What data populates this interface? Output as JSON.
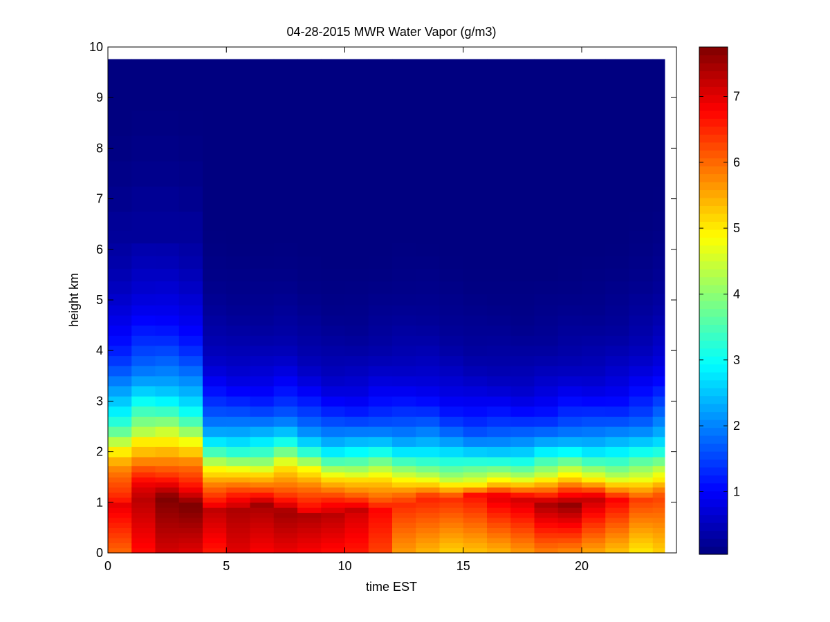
{
  "chart_data": {
    "type": "heatmap",
    "title": "04-28-2015 MWR Water Vapor (g/m3)",
    "xlabel": "time EST",
    "ylabel": "height km",
    "xlim": [
      0,
      24
    ],
    "ylim": [
      0,
      10
    ],
    "x_ticks": [
      "0",
      "5",
      "10",
      "15",
      "20"
    ],
    "y_ticks": [
      "0",
      "1",
      "2",
      "3",
      "4",
      "5",
      "6",
      "7",
      "8",
      "9",
      "10"
    ],
    "colorscale": "jet",
    "colorbar": {
      "min": 0.05,
      "max": 7.75,
      "ticks": [
        "1",
        "2",
        "3",
        "4",
        "5",
        "6",
        "7"
      ]
    },
    "x": [
      0.5,
      1.5,
      2.5,
      3.5,
      4.5,
      5.5,
      6.5,
      7.5,
      8.5,
      9.5,
      10.5,
      11.5,
      12.5,
      13.5,
      14.5,
      15.5,
      16.5,
      17.5,
      18.5,
      19.5,
      20.5,
      21.5,
      22.5,
      23.5
    ],
    "heights_km": [
      0.05,
      0.15,
      0.25,
      0.35,
      0.45,
      0.55,
      0.65,
      0.75,
      0.85,
      0.95,
      1.05,
      1.15,
      1.25,
      1.35,
      1.45,
      1.55,
      1.65,
      1.8,
      2.0,
      2.2,
      2.4,
      2.6,
      2.8,
      3.0,
      3.2,
      3.4,
      3.6,
      3.8,
      4.0,
      4.2,
      4.4,
      4.6,
      4.8,
      5.0,
      5.25,
      5.5,
      5.75,
      6.0,
      6.25,
      6.5,
      7.0,
      7.5,
      8.0,
      8.5,
      9.0,
      9.5,
      9.75
    ],
    "surface_vapor": [
      6.0,
      6.7,
      7.1,
      7.0,
      6.6,
      7.0,
      6.8,
      6.9,
      6.8,
      6.7,
      6.6,
      6.3,
      5.6,
      5.4,
      5.2,
      5.3,
      5.4,
      5.6,
      5.8,
      5.7,
      5.5,
      5.3,
      5.0,
      5.2
    ],
    "peak_vapor": [
      7.0,
      7.3,
      7.7,
      7.8,
      7.3,
      7.4,
      7.4,
      7.5,
      7.4,
      7.3,
      7.1,
      6.8,
      6.5,
      6.5,
      6.5,
      6.7,
      7.0,
      7.1,
      7.5,
      7.7,
      7.2,
      6.8,
      6.4,
      6.3
    ],
    "peak_height_km": [
      1.0,
      1.05,
      1.0,
      0.95,
      0.9,
      0.85,
      0.9,
      0.8,
      0.75,
      0.75,
      0.8,
      0.9,
      1.0,
      1.05,
      1.1,
      1.15,
      1.1,
      1.05,
      1.0,
      1.0,
      1.05,
      1.05,
      1.1,
      1.1
    ],
    "moist_layer_top_km": [
      2.0,
      2.2,
      2.2,
      2.1,
      1.6,
      1.6,
      1.6,
      1.7,
      1.6,
      1.5,
      1.5,
      1.5,
      1.4,
      1.4,
      1.35,
      1.35,
      1.4,
      1.4,
      1.45,
      1.5,
      1.45,
      1.4,
      1.4,
      1.45
    ],
    "decay_scale_km": [
      1.45,
      1.5,
      1.5,
      1.45,
      1.05,
      1.0,
      1.0,
      1.0,
      0.95,
      0.92,
      0.92,
      0.98,
      1.05,
      1.05,
      1.0,
      0.95,
      0.92,
      0.9,
      0.92,
      0.95,
      0.98,
      1.05,
      1.15,
      1.25
    ]
  }
}
